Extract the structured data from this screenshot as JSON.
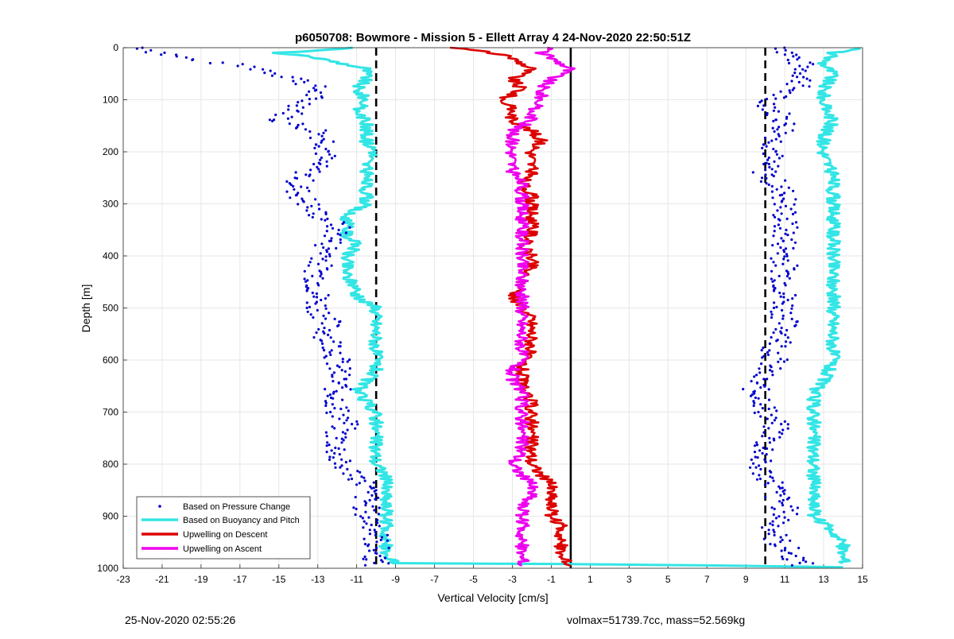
{
  "chart_data": {
    "type": "scatter",
    "title": "p6050708: Bowmore - Mission 5 - Ellett Array 4 24-Nov-2020 22:50:51Z",
    "xlabel": "Vertical Velocity [cm/s]",
    "ylabel": "Depth [m]",
    "xlim": [
      -23,
      15
    ],
    "ylim": [
      0,
      1000
    ],
    "y_reversed": true,
    "grid": true,
    "x_ticks": [
      -23,
      -21,
      -19,
      -17,
      -15,
      -13,
      -11,
      -9,
      -7,
      -5,
      -3,
      -1,
      1,
      3,
      5,
      7,
      9,
      11,
      13,
      15
    ],
    "y_ticks": [
      0,
      100,
      200,
      300,
      400,
      500,
      600,
      700,
      800,
      900,
      1000
    ],
    "legend_position": "bottom-left",
    "reference_lines": [
      {
        "x": -10,
        "style": "dashed",
        "color": "#000000"
      },
      {
        "x": 10,
        "style": "dashed",
        "color": "#000000"
      },
      {
        "x": 0,
        "style": "solid",
        "color": "#000000"
      }
    ],
    "series": [
      {
        "name": "Based on Pressure Change",
        "color": "#0000cc",
        "marker": "dot",
        "profiles": [
          {
            "depth": [
              0,
              20,
              40,
              60,
              80,
              100,
              120,
              140,
              160,
              180,
              200,
              220,
              240,
              260,
              280,
              300,
              320,
              340,
              360,
              380,
              400,
              420,
              440,
              460,
              480,
              500,
              520,
              540,
              560,
              580,
              600,
              620,
              640,
              660,
              680,
              700,
              720,
              740,
              760,
              780,
              800,
              820,
              840,
              860,
              880,
              900,
              920,
              940,
              960,
              980,
              995
            ],
            "velocity": [
              -22,
              -20,
              -16,
              -14,
              -13,
              -13.5,
              -14,
              -15,
              -13,
              -12.5,
              -12.5,
              -13,
              -13.5,
              -14,
              -14,
              -13.5,
              -13,
              -12,
              -12,
              -12.5,
              -12.5,
              -13,
              -13,
              -13,
              -13,
              -13,
              -12.5,
              -12.5,
              -12.5,
              -12,
              -12,
              -12,
              -12,
              -12,
              -12,
              -12,
              -11.5,
              -12,
              -12,
              -12,
              -12,
              -11,
              -10.5,
              -10.5,
              -10.5,
              -10.5,
              -10,
              -10,
              -10,
              -10,
              -10
            ]
          },
          {
            "depth": [
              0,
              20,
              40,
              60,
              80,
              100,
              120,
              140,
              160,
              180,
              200,
              220,
              240,
              260,
              280,
              300,
              320,
              340,
              360,
              380,
              400,
              420,
              440,
              460,
              480,
              500,
              520,
              540,
              560,
              580,
              600,
              620,
              640,
              660,
              680,
              700,
              720,
              740,
              760,
              780,
              800,
              820,
              840,
              860,
              880,
              900,
              920,
              940,
              960,
              980,
              995
            ],
            "velocity": [
              11,
              11.5,
              12,
              12,
              11.5,
              10,
              10.5,
              11,
              11,
              10.5,
              10.5,
              10,
              10,
              10.5,
              11,
              11,
              11,
              11,
              11,
              11,
              11,
              11,
              11,
              11,
              11,
              11,
              11,
              11,
              11,
              10.5,
              10.5,
              10,
              9.5,
              9.5,
              10,
              10,
              10.5,
              10.5,
              10,
              10,
              9.5,
              10,
              10.5,
              10.5,
              11,
              11,
              10.5,
              10.5,
              11,
              11.5,
              12
            ]
          }
        ]
      },
      {
        "name": "Based on Buoyancy and Pitch",
        "color": "#33e5e5",
        "marker": "line",
        "profiles": [
          {
            "depth": [
              0,
              10,
              20,
              40,
              60,
              80,
              100,
              120,
              140,
              160,
              180,
              200,
              220,
              240,
              260,
              280,
              300,
              320,
              340,
              360,
              380,
              400,
              420,
              440,
              460,
              480,
              500,
              520,
              540,
              560,
              580,
              600,
              620,
              640,
              660,
              680,
              700,
              720,
              740,
              760,
              780,
              800,
              820,
              840,
              860,
              880,
              900,
              920,
              940,
              960,
              980,
              990
            ],
            "velocity": [
              -11,
              -15,
              -13,
              -10.5,
              -10.5,
              -11,
              -10.5,
              -11,
              -10.5,
              -10.5,
              -10.5,
              -10,
              -10.5,
              -10.5,
              -10.5,
              -10.5,
              -10.5,
              -11.5,
              -11.5,
              -11.5,
              -11,
              -11.5,
              -11.5,
              -11.5,
              -11,
              -11,
              -10,
              -10,
              -10,
              -10,
              -10,
              -10,
              -10,
              -10.5,
              -11,
              -10.5,
              -10,
              -10,
              -10,
              -10,
              -10,
              -10,
              -9.5,
              -9.5,
              -9.5,
              -9.5,
              -9.5,
              -9.5,
              -9.5,
              -9.5,
              -9.5,
              -9
            ]
          },
          {
            "depth": [
              990,
              992,
              995,
              998
            ],
            "velocity": [
              -9,
              0,
              8,
              14
            ]
          },
          {
            "depth": [
              0,
              10,
              30,
              50,
              80,
              110,
              140,
              170,
              200,
              250,
              300,
              350,
              400,
              450,
              500,
              550,
              600,
              640,
              660,
              700,
              750,
              800,
              850,
              900,
              930,
              950,
              970,
              990
            ],
            "velocity": [
              15,
              13.5,
              13,
              13.5,
              13,
              13,
              13.5,
              13,
              13,
              13.5,
              13.5,
              13.5,
              13.5,
              13.5,
              13.5,
              13.5,
              13.5,
              13,
              12.5,
              12.5,
              12.5,
              12.5,
              12.5,
              12.5,
              13.5,
              14,
              14,
              14
            ]
          }
        ]
      },
      {
        "name": "Upwelling on Descent",
        "color": "#dd0000",
        "marker": "line",
        "depth": [
          0,
          10,
          20,
          40,
          60,
          80,
          100,
          120,
          140,
          160,
          180,
          200,
          220,
          240,
          260,
          280,
          300,
          320,
          340,
          360,
          380,
          400,
          420,
          440,
          460,
          480,
          500,
          520,
          540,
          560,
          580,
          600,
          620,
          640,
          660,
          680,
          700,
          720,
          740,
          760,
          780,
          800,
          820,
          840,
          860,
          880,
          900,
          920,
          940,
          960,
          980,
          995
        ],
        "velocity": [
          -6,
          -4,
          -3,
          -2,
          -3,
          -2.5,
          -3.5,
          -3,
          -3,
          -2,
          -1.5,
          -2,
          -2,
          -2,
          -2.5,
          -2,
          -2,
          -2,
          -2,
          -2,
          -2.5,
          -2,
          -2,
          -2.5,
          -2.5,
          -3,
          -2.5,
          -2,
          -2,
          -2,
          -2,
          -2.5,
          -2.5,
          -2.5,
          -2.5,
          -2,
          -2,
          -2,
          -2,
          -2,
          -2,
          -2,
          -1.5,
          -1,
          -1,
          -1,
          -1,
          -0.5,
          -0.5,
          -0.5,
          -0.5,
          0
        ]
      },
      {
        "name": "Upwelling on Ascent",
        "color": "#ee00ee",
        "marker": "line",
        "depth": [
          0,
          10,
          20,
          40,
          60,
          80,
          100,
          120,
          140,
          160,
          180,
          200,
          220,
          240,
          260,
          280,
          300,
          320,
          340,
          360,
          380,
          400,
          420,
          440,
          460,
          480,
          500,
          520,
          540,
          560,
          580,
          600,
          620,
          640,
          660,
          680,
          700,
          720,
          740,
          760,
          780,
          800,
          820,
          840,
          860,
          880,
          900,
          920,
          940,
          960,
          980,
          995
        ],
        "velocity": [
          -1,
          -1.5,
          -1,
          0,
          -1,
          -1.5,
          -1.5,
          -2,
          -2,
          -3,
          -3,
          -3,
          -3,
          -3,
          -2.5,
          -2.5,
          -2.5,
          -2.5,
          -2.5,
          -2.5,
          -2.5,
          -2.5,
          -2.5,
          -2.5,
          -2.5,
          -2.5,
          -2.5,
          -2.5,
          -2.5,
          -2.5,
          -2.5,
          -2.5,
          -3,
          -3,
          -2.5,
          -2.5,
          -2.5,
          -2.5,
          -2.5,
          -2.5,
          -2.5,
          -3,
          -2.5,
          -2,
          -2,
          -2.5,
          -2.5,
          -2.5,
          -2.5,
          -2.5,
          -2.5,
          -2.5
        ]
      }
    ]
  },
  "footer": {
    "timestamp": "25-Nov-2020 02:55:26",
    "stats": "volmax=51739.7cc, mass=52.569kg"
  }
}
